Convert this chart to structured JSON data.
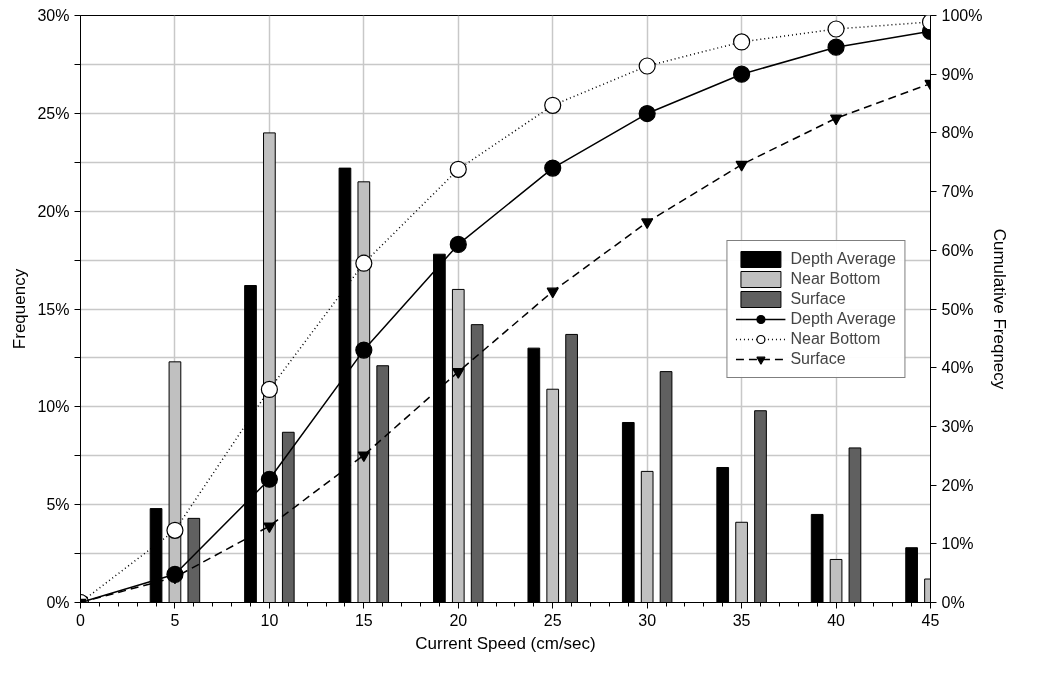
{
  "chart_data": {
    "type": "bar",
    "xlabel": "Current Speed (cm/sec)",
    "ylabel": "Frequency",
    "y2label": "Cumulative Freqnecy",
    "x": [
      5,
      10,
      15,
      20,
      25,
      30,
      35,
      40,
      45
    ],
    "series": [
      {
        "name": "Depth Average",
        "color": "#000000",
        "values": [
          4.8,
          16.2,
          22.2,
          17.8,
          13.0,
          9.2,
          6.9,
          4.5,
          2.8
        ]
      },
      {
        "name": "Near Bottom",
        "color": "#c0c0c0",
        "values": [
          12.3,
          24.0,
          21.5,
          16.0,
          10.9,
          6.7,
          4.1,
          2.2,
          1.2
        ]
      },
      {
        "name": "Surface",
        "color": "#606060",
        "values": [
          4.3,
          8.7,
          12.1,
          14.2,
          13.7,
          11.8,
          9.8,
          7.9,
          null
        ]
      },
      {
        "name": "Depth Average",
        "type": "line",
        "axis": "y2",
        "color": "#000000",
        "marker": "circle",
        "line_style": "solid",
        "x": [
          0,
          5,
          10,
          15,
          20,
          25,
          30,
          35,
          40,
          45
        ],
        "values": [
          0,
          4.8,
          21,
          43,
          61,
          74,
          83.3,
          90,
          94.6,
          97.3
        ]
      },
      {
        "name": "Near Bottom",
        "type": "line",
        "axis": "y2",
        "color": "#ffffff",
        "marker": "circle",
        "line_style": "dotted",
        "x": [
          0,
          5,
          10,
          15,
          20,
          25,
          30,
          35,
          40,
          45
        ],
        "values": [
          0,
          12.3,
          36.3,
          57.8,
          73.8,
          84.7,
          91.4,
          95.5,
          97.7,
          98.9
        ]
      },
      {
        "name": "Surface",
        "type": "line",
        "axis": "y2",
        "color": "#000000",
        "marker": "triangle",
        "line_style": "dashed",
        "x": [
          0,
          5,
          10,
          15,
          20,
          25,
          30,
          35,
          40,
          45
        ],
        "values": [
          0,
          4.3,
          13,
          25.1,
          39.3,
          53,
          64.8,
          74.6,
          82.5,
          88.4
        ]
      }
    ],
    "xlim": [
      0,
      45
    ],
    "xticks": [
      0,
      5,
      10,
      15,
      20,
      25,
      30,
      35,
      40,
      45
    ],
    "ylim": [
      0,
      30
    ],
    "yticks": [
      {
        "value": 0,
        "label": "0%"
      },
      {
        "value": 2.5,
        "label": null
      },
      {
        "value": 5,
        "label": "5%"
      },
      {
        "value": 7.5,
        "label": null
      },
      {
        "value": 10,
        "label": "10%"
      },
      {
        "value": 12.5,
        "label": null
      },
      {
        "value": 15,
        "label": "15%"
      },
      {
        "value": 17.5,
        "label": null
      },
      {
        "value": 20,
        "label": "20%"
      },
      {
        "value": 22.5,
        "label": null
      },
      {
        "value": 25,
        "label": "25%"
      },
      {
        "value": 27.5,
        "label": null
      },
      {
        "value": 30,
        "label": "30%"
      }
    ],
    "y2lim": [
      0,
      100
    ],
    "y2ticks": [
      {
        "value": 0,
        "label": "0%"
      },
      {
        "value": 10,
        "label": "10%"
      },
      {
        "value": 20,
        "label": "20%"
      },
      {
        "value": 30,
        "label": "30%"
      },
      {
        "value": 40,
        "label": "40%"
      },
      {
        "value": 50,
        "label": "50%"
      },
      {
        "value": 60,
        "label": "60%"
      },
      {
        "value": 70,
        "label": "70%"
      },
      {
        "value": 80,
        "label": "80%"
      },
      {
        "value": 90,
        "label": "90%"
      },
      {
        "value": 100,
        "label": "100%"
      }
    ],
    "grid": true,
    "legend": "right"
  }
}
